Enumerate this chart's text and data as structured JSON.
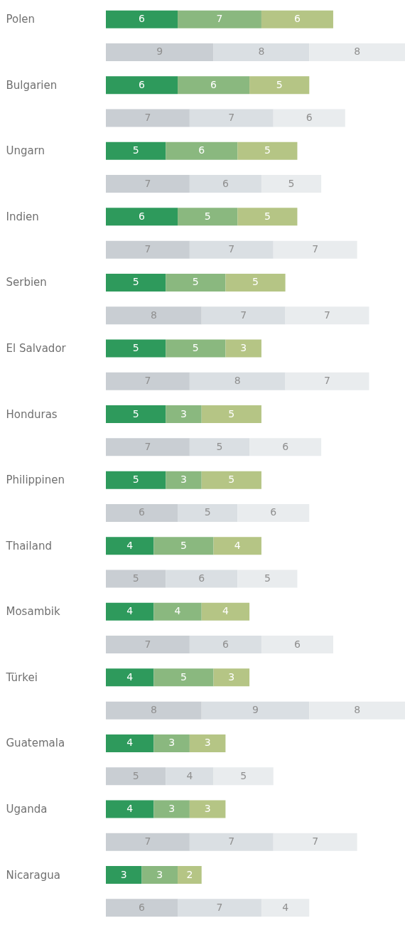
{
  "chart_data": {
    "type": "bar",
    "orientation": "horizontal",
    "stacked": true,
    "data_labels": true,
    "grid": false,
    "xlim": [
      0,
      25
    ],
    "tick_labels": "y",
    "categories": [
      "Polen",
      null,
      "Bulgarien",
      null,
      "Ungarn",
      null,
      "Indien",
      null,
      "Serbien",
      null,
      "El Salvador",
      null,
      "Honduras",
      null,
      "Philippinen",
      null,
      "Thailand",
      null,
      "Mosambik",
      null,
      "Türkei",
      null,
      "Guatemala",
      null,
      "Uganda",
      null,
      "Nicaragua",
      null
    ],
    "series": [
      {
        "colors": [
          "#2e9a5c",
          "#c9ced3",
          "#2e9a5c",
          "#c9ced3",
          "#2e9a5c",
          "#c9ced3",
          "#2e9a5c",
          "#c9ced3",
          "#2e9a5c",
          "#c9ced3",
          "#2e9a5c",
          "#c9ced3",
          "#2e9a5c",
          "#c9ced3",
          "#2e9a5c",
          "#c9ced3",
          "#2e9a5c",
          "#c9ced3",
          "#2e9a5c",
          "#c9ced3",
          "#2e9a5c",
          "#c9ced3",
          "#2e9a5c",
          "#c9ced3",
          "#2e9a5c",
          "#c9ced3",
          "#2e9a5c",
          "#c9ced3"
        ],
        "values": [
          6,
          9,
          6,
          7,
          5,
          7,
          6,
          7,
          5,
          8,
          5,
          7,
          5,
          7,
          5,
          6,
          4,
          5,
          4,
          7,
          4,
          8,
          4,
          5,
          4,
          7,
          3,
          6
        ]
      },
      {
        "colors": [
          "#8ab87f",
          "#dadfe3",
          "#8ab87f",
          "#dadfe3",
          "#8ab87f",
          "#dadfe3",
          "#8ab87f",
          "#dadfe3",
          "#8ab87f",
          "#dadfe3",
          "#8ab87f",
          "#dadfe3",
          "#8ab87f",
          "#dadfe3",
          "#8ab87f",
          "#dadfe3",
          "#8ab87f",
          "#dadfe3",
          "#8ab87f",
          "#dadfe3",
          "#8ab87f",
          "#dadfe3",
          "#8ab87f",
          "#dadfe3",
          "#8ab87f",
          "#dadfe3",
          "#8ab87f",
          "#dadfe3"
        ],
        "values": [
          7,
          8,
          6,
          7,
          6,
          6,
          5,
          7,
          5,
          7,
          5,
          8,
          3,
          5,
          3,
          5,
          5,
          6,
          4,
          6,
          5,
          9,
          3,
          4,
          3,
          7,
          3,
          7
        ]
      },
      {
        "colors": [
          "#b5c585",
          "#e9ecee",
          "#b5c585",
          "#e9ecee",
          "#b5c585",
          "#e9ecee",
          "#b5c585",
          "#e9ecee",
          "#b5c585",
          "#e9ecee",
          "#b5c585",
          "#e9ecee",
          "#b5c585",
          "#e9ecee",
          "#b5c585",
          "#e9ecee",
          "#b5c585",
          "#e9ecee",
          "#b5c585",
          "#e9ecee",
          "#b5c585",
          "#e9ecee",
          "#b5c585",
          "#e9ecee",
          "#b5c585",
          "#e9ecee",
          "#b5c585",
          "#e9ecee"
        ],
        "values": [
          6,
          8,
          5,
          6,
          5,
          5,
          5,
          7,
          5,
          7,
          3,
          7,
          5,
          6,
          5,
          6,
          4,
          5,
          4,
          6,
          3,
          8,
          3,
          5,
          3,
          7,
          2,
          4
        ]
      }
    ]
  }
}
